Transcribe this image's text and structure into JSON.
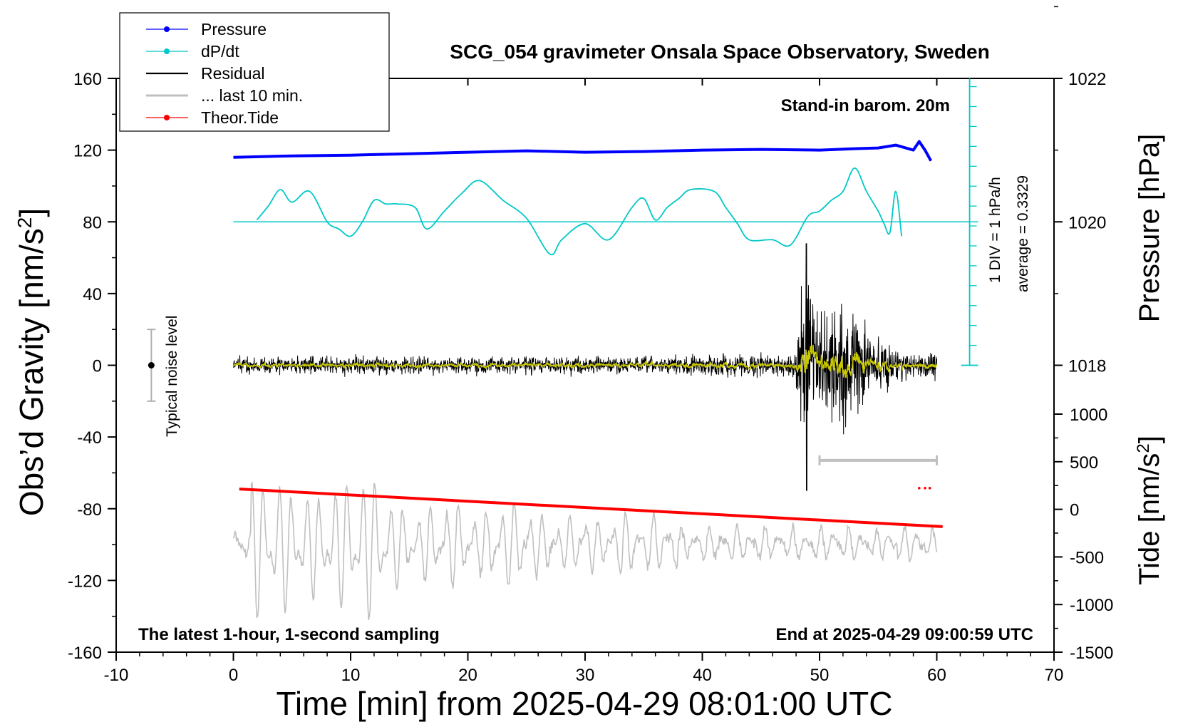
{
  "chart_data": {
    "type": "line",
    "title": "SCG_054 gravimeter Onsala Space Observatory, Sweden",
    "xlabel": "Time [min] from 2025-04-29 08:01:00 UTC",
    "ylabel_left": "Obs’d Gravity [nm/s",
    "ylabel_left_sup": "2",
    "ylabel_left_close": "]",
    "ylabel_right_pressure": "Pressure [hPa]",
    "ylabel_right_tide": "Tide [nm/s",
    "ylabel_right_tide_sup": "2",
    "ylabel_right_tide_close": "]",
    "xlim": [
      -10,
      70
    ],
    "ylim": [
      -160,
      160
    ],
    "x_ticks": [
      "-10",
      "0",
      "10",
      "20",
      "30",
      "40",
      "50",
      "60",
      "70"
    ],
    "y_ticks": [
      "160",
      "120",
      "80",
      "40",
      "0",
      "-40",
      "-80",
      "-120",
      "-160"
    ],
    "pressure_ticks": [
      "1022",
      "1020",
      "1018"
    ],
    "pressure_tick_values": [
      1022,
      1020,
      1018
    ],
    "tide_ticks": [
      "1000",
      "500",
      "0",
      "-500",
      "-1000",
      "-1500"
    ],
    "tide_tick_values": [
      1000,
      500,
      0,
      -500,
      -1000,
      -1500
    ],
    "grid": false,
    "legend_position": "top-left",
    "legend": [
      {
        "label": "Pressure",
        "color": "#0000ff",
        "marker": true
      },
      {
        "label": "dP/dt",
        "color": "#00c8c8",
        "marker": true
      },
      {
        "label": "Residual",
        "color": "#000000",
        "marker": false
      },
      {
        "label": "... last 10 min.",
        "color": "#c0c0c0",
        "marker": false
      },
      {
        "label": "Theor.Tide",
        "color": "#ff0000",
        "marker": true
      }
    ],
    "annotations": {
      "barometer": "Stand-in barom. 20m",
      "sampling": "The latest 1-hour, 1-second sampling",
      "end_time": "End at 2025-04-29 09:00:59 UTC",
      "noise": "Typical noise level",
      "div": "1 DIV = 1 hPa/h",
      "average": "average = 0.3329"
    },
    "colors": {
      "pressure": "#0000ff",
      "dpdt": "#00c8c8",
      "residual": "#000000",
      "residual_smooth": "#c8c800",
      "last10": "#c0c0c0",
      "tide": "#ff0000"
    },
    "noise_level": {
      "x": -7,
      "center": 0,
      "low": -20,
      "high": 20
    },
    "last10_span": {
      "x_start": 50,
      "x_end": 60,
      "y": -53
    },
    "dpdt_scale": {
      "x": 62.8,
      "zero_y": 0,
      "top_y": 160,
      "baseline_y": 80
    },
    "pressure_series": {
      "x": [
        0,
        5,
        10,
        15,
        20,
        25,
        30,
        35,
        40,
        45,
        50,
        53,
        55,
        56.5,
        58,
        58.5,
        59,
        59.5
      ],
      "hPa": [
        1020.9,
        1020.92,
        1020.93,
        1020.95,
        1020.97,
        1020.99,
        1020.97,
        1020.98,
        1021.0,
        1021.01,
        1021.0,
        1021.02,
        1021.03,
        1021.07,
        1021.0,
        1021.12,
        1021.0,
        1020.85
      ]
    },
    "dpdt_series": {
      "x": [
        2,
        3,
        4,
        5,
        6.5,
        8,
        9,
        10,
        11,
        12,
        13,
        14,
        15.5,
        16.5,
        18,
        19.5,
        21,
        23,
        25,
        27,
        28,
        30,
        32,
        34,
        35,
        36,
        37,
        38,
        39,
        41,
        42,
        43,
        44,
        46,
        47.5,
        49,
        50,
        51,
        52,
        53,
        54,
        55,
        55.5,
        56,
        56.5,
        57
      ],
      "y": [
        81,
        89,
        98,
        91,
        97,
        80,
        76,
        72,
        80,
        92,
        90,
        90,
        88,
        76,
        86,
        96,
        103,
        92,
        82,
        62,
        70,
        79,
        70,
        88,
        93,
        81,
        88,
        93,
        98,
        97,
        88,
        79,
        70,
        70,
        67,
        83,
        86,
        92,
        97,
        110,
        97,
        86,
        79,
        74,
        97,
        72
      ]
    },
    "residual": {
      "x_start": 0,
      "x_end": 60,
      "burst_start": 48,
      "peak_x": 48.9,
      "peak_min": -70,
      "peak_max": 68
    },
    "last10_series": {
      "x_start": 0,
      "x_end": 60,
      "center": -100
    },
    "tide_series": {
      "x": [
        0.5,
        60.5
      ],
      "y": [
        -69,
        -90
      ]
    },
    "tide_dots": {
      "x": [
        58.5,
        59,
        59.4
      ],
      "y": -68.5
    }
  }
}
